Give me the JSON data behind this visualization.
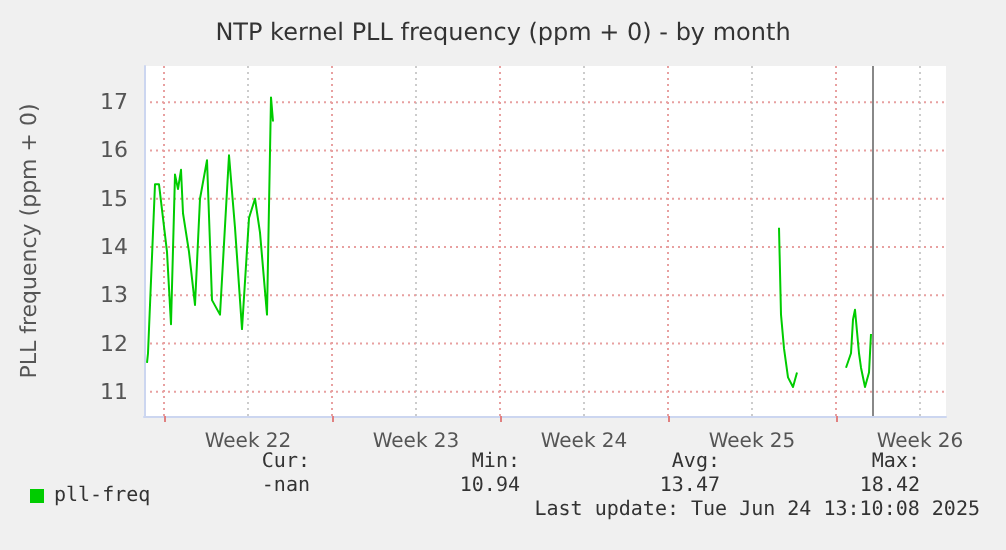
{
  "chart_data": {
    "type": "line",
    "title": "NTP kernel PLL frequency (ppm + 0) - by month",
    "ylabel": "PLL frequency (ppm + 0)",
    "series": [
      {
        "name": "pll-freq",
        "color": "#00cc00",
        "x": [
          "2025-05-25T07:00",
          "2025-05-25T08:00",
          "2025-05-25T15:00",
          "2025-05-25T19:00",
          "2025-05-25T23:00",
          "2025-05-26T03:00",
          "2025-05-26T07:00",
          "2025-05-26T11:00",
          "2025-05-26T14:00",
          "2025-05-26T17:00",
          "2025-05-26T19:00",
          "2025-05-27T01:00",
          "2025-05-27T07:00",
          "2025-05-27T12:00",
          "2025-05-27T19:00",
          "2025-05-28T00:00",
          "2025-05-28T08:00",
          "2025-05-28T17:00",
          "2025-05-28T23:00",
          "2025-05-29T06:00",
          "2025-05-29T13:00",
          "2025-05-29T19:00",
          "2025-05-30T00:00",
          "2025-05-30T07:00",
          "2025-05-30T11:00",
          "2025-05-30T13:00",
          "2025-06-01T00:00",
          "2025-06-20T15:00",
          "2025-06-20T17:00",
          "2025-06-20T20:00",
          "2025-06-21T00:00",
          "2025-06-21T05:00",
          "2025-06-21T09:00",
          "2025-06-22T00:00",
          "2025-06-23T10:00",
          "2025-06-23T15:00",
          "2025-06-23T17:00",
          "2025-06-23T19:00",
          "2025-06-23T23:00",
          "2025-06-24T01:00",
          "2025-06-24T05:00",
          "2025-06-24T09:00",
          "2025-06-24T11:00"
        ],
        "values": [
          11.6,
          11.8,
          15.3,
          15.3,
          14.6,
          13.9,
          12.4,
          15.5,
          15.2,
          15.6,
          14.7,
          13.9,
          12.8,
          15.0,
          15.8,
          12.9,
          12.6,
          15.9,
          14.4,
          12.3,
          14.6,
          15.0,
          14.3,
          12.6,
          17.1,
          16.6,
          null,
          14.4,
          12.6,
          11.9,
          11.3,
          11.1,
          11.4,
          null,
          11.5,
          11.8,
          12.5,
          12.7,
          11.8,
          11.5,
          11.1,
          11.4,
          12.2
        ]
      }
    ],
    "xlim": [
      "2025-05-25T04:00",
      "2025-06-27T14:00"
    ],
    "xticks": [
      {
        "value": "2025-05-26T00:00",
        "label": null
      },
      {
        "value": "2025-05-29T12:00",
        "label": "Week 22"
      },
      {
        "value": "2025-06-02T00:00",
        "label": null
      },
      {
        "value": "2025-06-05T12:00",
        "label": "Week 23"
      },
      {
        "value": "2025-06-09T00:00",
        "label": null
      },
      {
        "value": "2025-06-12T12:00",
        "label": "Week 24"
      },
      {
        "value": "2025-06-16T00:00",
        "label": null
      },
      {
        "value": "2025-06-19T12:00",
        "label": "Week 25"
      },
      {
        "value": "2025-06-23T00:00",
        "label": null
      },
      {
        "value": "2025-06-26T12:00",
        "label": "Week 26"
      }
    ],
    "ylim": [
      10.5,
      17.75
    ],
    "yticks": [
      11,
      12,
      13,
      14,
      15,
      16,
      17
    ],
    "grid": true,
    "legend": "bottom left",
    "marker": "none",
    "line_style": "solid",
    "ref_lines": [
      {
        "axis": "x",
        "value": "2025-06-24T13:10",
        "label": null,
        "color": "#888888"
      }
    ],
    "annotations": [
      "Cur:",
      "-nan",
      "Min:",
      "10.94",
      "Avg:",
      "13.47",
      "Max:",
      "18.42",
      "Last update: Tue Jun 24 13:10:08 2025"
    ]
  }
}
